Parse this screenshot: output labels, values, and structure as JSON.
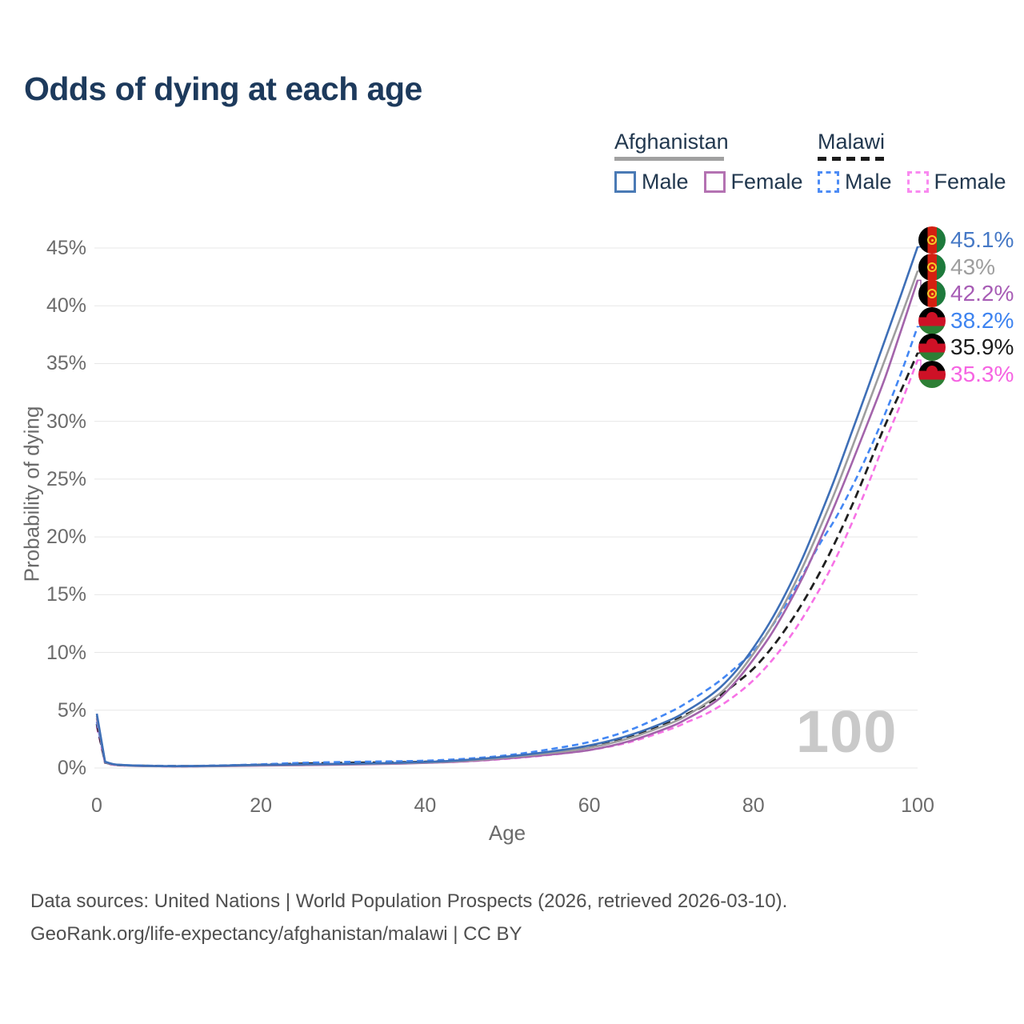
{
  "watermark": {
    "text": "100"
  },
  "footer": {
    "line1": "Data sources: United Nations | World Population Prospects (2026, retrieved 2026-03-10).",
    "line2": "GeoRank.org/life-expectancy/afghanistan/malawi | CC BY"
  },
  "legend": {
    "groups": [
      {
        "country": "Afghanistan",
        "line_color": "#a0a0a0",
        "line_style": "solid",
        "items": [
          {
            "label": "Male",
            "color": "#4a7ab5",
            "line_style": "solid"
          },
          {
            "label": "Female",
            "color": "#b472b2",
            "line_style": "solid"
          }
        ]
      },
      {
        "country": "Malawi",
        "line_color": "#1b1b1b",
        "line_style": "dashed",
        "items": [
          {
            "label": "Male",
            "color": "#4d8cf5",
            "line_style": "dashed"
          },
          {
            "label": "Female",
            "color": "#f98af0",
            "line_style": "dashed"
          }
        ]
      }
    ]
  },
  "end_labels": [
    {
      "value": "45.1%",
      "color": "#4679c6",
      "flag": "afghanistan",
      "series": "af_male"
    },
    {
      "value": "43%",
      "color": "#9e9e9e",
      "flag": "afghanistan",
      "series": "af_total"
    },
    {
      "value": "42.2%",
      "color": "#a75cb5",
      "flag": "afghanistan",
      "series": "af_female"
    },
    {
      "value": "38.2%",
      "color": "#3d83f0",
      "flag": "malawi",
      "series": "mw_male"
    },
    {
      "value": "35.9%",
      "color": "#1c1c1c",
      "flag": "malawi",
      "series": "mw_total"
    },
    {
      "value": "35.3%",
      "color": "#f664e2",
      "flag": "malawi",
      "series": "mw_female"
    }
  ],
  "chart_data": {
    "type": "line",
    "title": "Odds of dying at each age",
    "xlabel": "Age",
    "ylabel": "Probability of dying",
    "xlim": [
      0,
      100
    ],
    "ylim": [
      0,
      45
    ],
    "x_ticks": [
      0,
      20,
      40,
      60,
      80,
      100
    ],
    "y_ticks": [
      0,
      5,
      10,
      15,
      20,
      25,
      30,
      35,
      40,
      45
    ],
    "y_tick_suffix": "%",
    "grid": "horizontal",
    "legend_position": "top-right",
    "x": [
      0,
      1,
      2,
      3,
      5,
      10,
      15,
      20,
      25,
      30,
      35,
      40,
      45,
      50,
      55,
      60,
      65,
      70,
      72,
      74,
      76,
      78,
      80,
      82,
      84,
      86,
      88,
      90,
      92,
      94,
      96,
      98,
      100
    ],
    "series": [
      {
        "key": "mw_female",
        "name": "Malawi Female",
        "color": "#f772e6",
        "line_style": "dashed",
        "end_value_pct": 35.3,
        "values": [
          3.6,
          0.46,
          0.28,
          0.22,
          0.18,
          0.14,
          0.17,
          0.23,
          0.31,
          0.36,
          0.4,
          0.45,
          0.57,
          0.8,
          1.12,
          1.55,
          2.25,
          3.4,
          4.0,
          4.6,
          5.4,
          6.4,
          7.6,
          9.1,
          10.9,
          13.0,
          15.4,
          18.1,
          21.2,
          24.6,
          28.2,
          31.6,
          35.3
        ]
      },
      {
        "key": "mw_total",
        "name": "Malawi Both sexes",
        "color": "#1f1f1f",
        "line_style": "dashed",
        "end_value_pct": 35.9,
        "values": [
          3.8,
          0.48,
          0.3,
          0.24,
          0.2,
          0.16,
          0.2,
          0.28,
          0.38,
          0.44,
          0.48,
          0.54,
          0.68,
          0.95,
          1.35,
          1.85,
          2.7,
          4.0,
          4.7,
          5.4,
          6.3,
          7.4,
          8.6,
          10.2,
          12.1,
          14.3,
          16.8,
          19.6,
          22.7,
          26.1,
          29.6,
          32.7,
          35.9
        ]
      },
      {
        "key": "mw_male",
        "name": "Malawi Male",
        "color": "#4387f4",
        "line_style": "dashed",
        "end_value_pct": 38.2,
        "values": [
          4.0,
          0.5,
          0.32,
          0.26,
          0.22,
          0.17,
          0.22,
          0.32,
          0.45,
          0.52,
          0.57,
          0.63,
          0.8,
          1.1,
          1.6,
          2.25,
          3.3,
          4.9,
          5.7,
          6.6,
          7.6,
          8.8,
          10.1,
          12.0,
          14.2,
          16.7,
          19.3,
          21.6,
          24.3,
          27.3,
          30.6,
          34.2,
          38.2
        ]
      },
      {
        "key": "af_female",
        "name": "Afghanistan Female",
        "color": "#a364ab",
        "line_style": "solid",
        "end_value_pct": 42.2,
        "values": [
          4.3,
          0.5,
          0.3,
          0.24,
          0.18,
          0.14,
          0.16,
          0.21,
          0.25,
          0.29,
          0.35,
          0.44,
          0.58,
          0.83,
          1.15,
          1.55,
          2.35,
          3.6,
          4.3,
          5.1,
          6.1,
          7.6,
          9.4,
          11.4,
          13.8,
          16.5,
          19.6,
          22.9,
          26.4,
          30.0,
          33.7,
          37.9,
          42.2
        ]
      },
      {
        "key": "af_total",
        "name": "Afghanistan Both sexes",
        "color": "#9e9e9e",
        "line_style": "solid",
        "end_value_pct": 43.0,
        "values": [
          4.5,
          0.52,
          0.32,
          0.25,
          0.19,
          0.15,
          0.18,
          0.24,
          0.29,
          0.33,
          0.39,
          0.48,
          0.64,
          0.92,
          1.28,
          1.75,
          2.6,
          3.9,
          4.6,
          5.5,
          6.5,
          8.0,
          9.9,
          12.0,
          14.5,
          17.4,
          20.6,
          24.0,
          27.7,
          31.5,
          35.3,
          39.1,
          43.0
        ]
      },
      {
        "key": "af_male",
        "name": "Afghanistan Male",
        "color": "#3e6fb7",
        "line_style": "solid",
        "end_value_pct": 45.1,
        "values": [
          4.7,
          0.55,
          0.34,
          0.27,
          0.2,
          0.16,
          0.2,
          0.27,
          0.32,
          0.36,
          0.42,
          0.52,
          0.7,
          1.0,
          1.4,
          1.95,
          2.85,
          4.2,
          5.0,
          5.9,
          7.0,
          8.5,
          10.4,
          12.6,
          15.2,
          18.2,
          21.6,
          25.2,
          29.1,
          33.0,
          37.0,
          41.0,
          45.1
        ]
      }
    ]
  }
}
